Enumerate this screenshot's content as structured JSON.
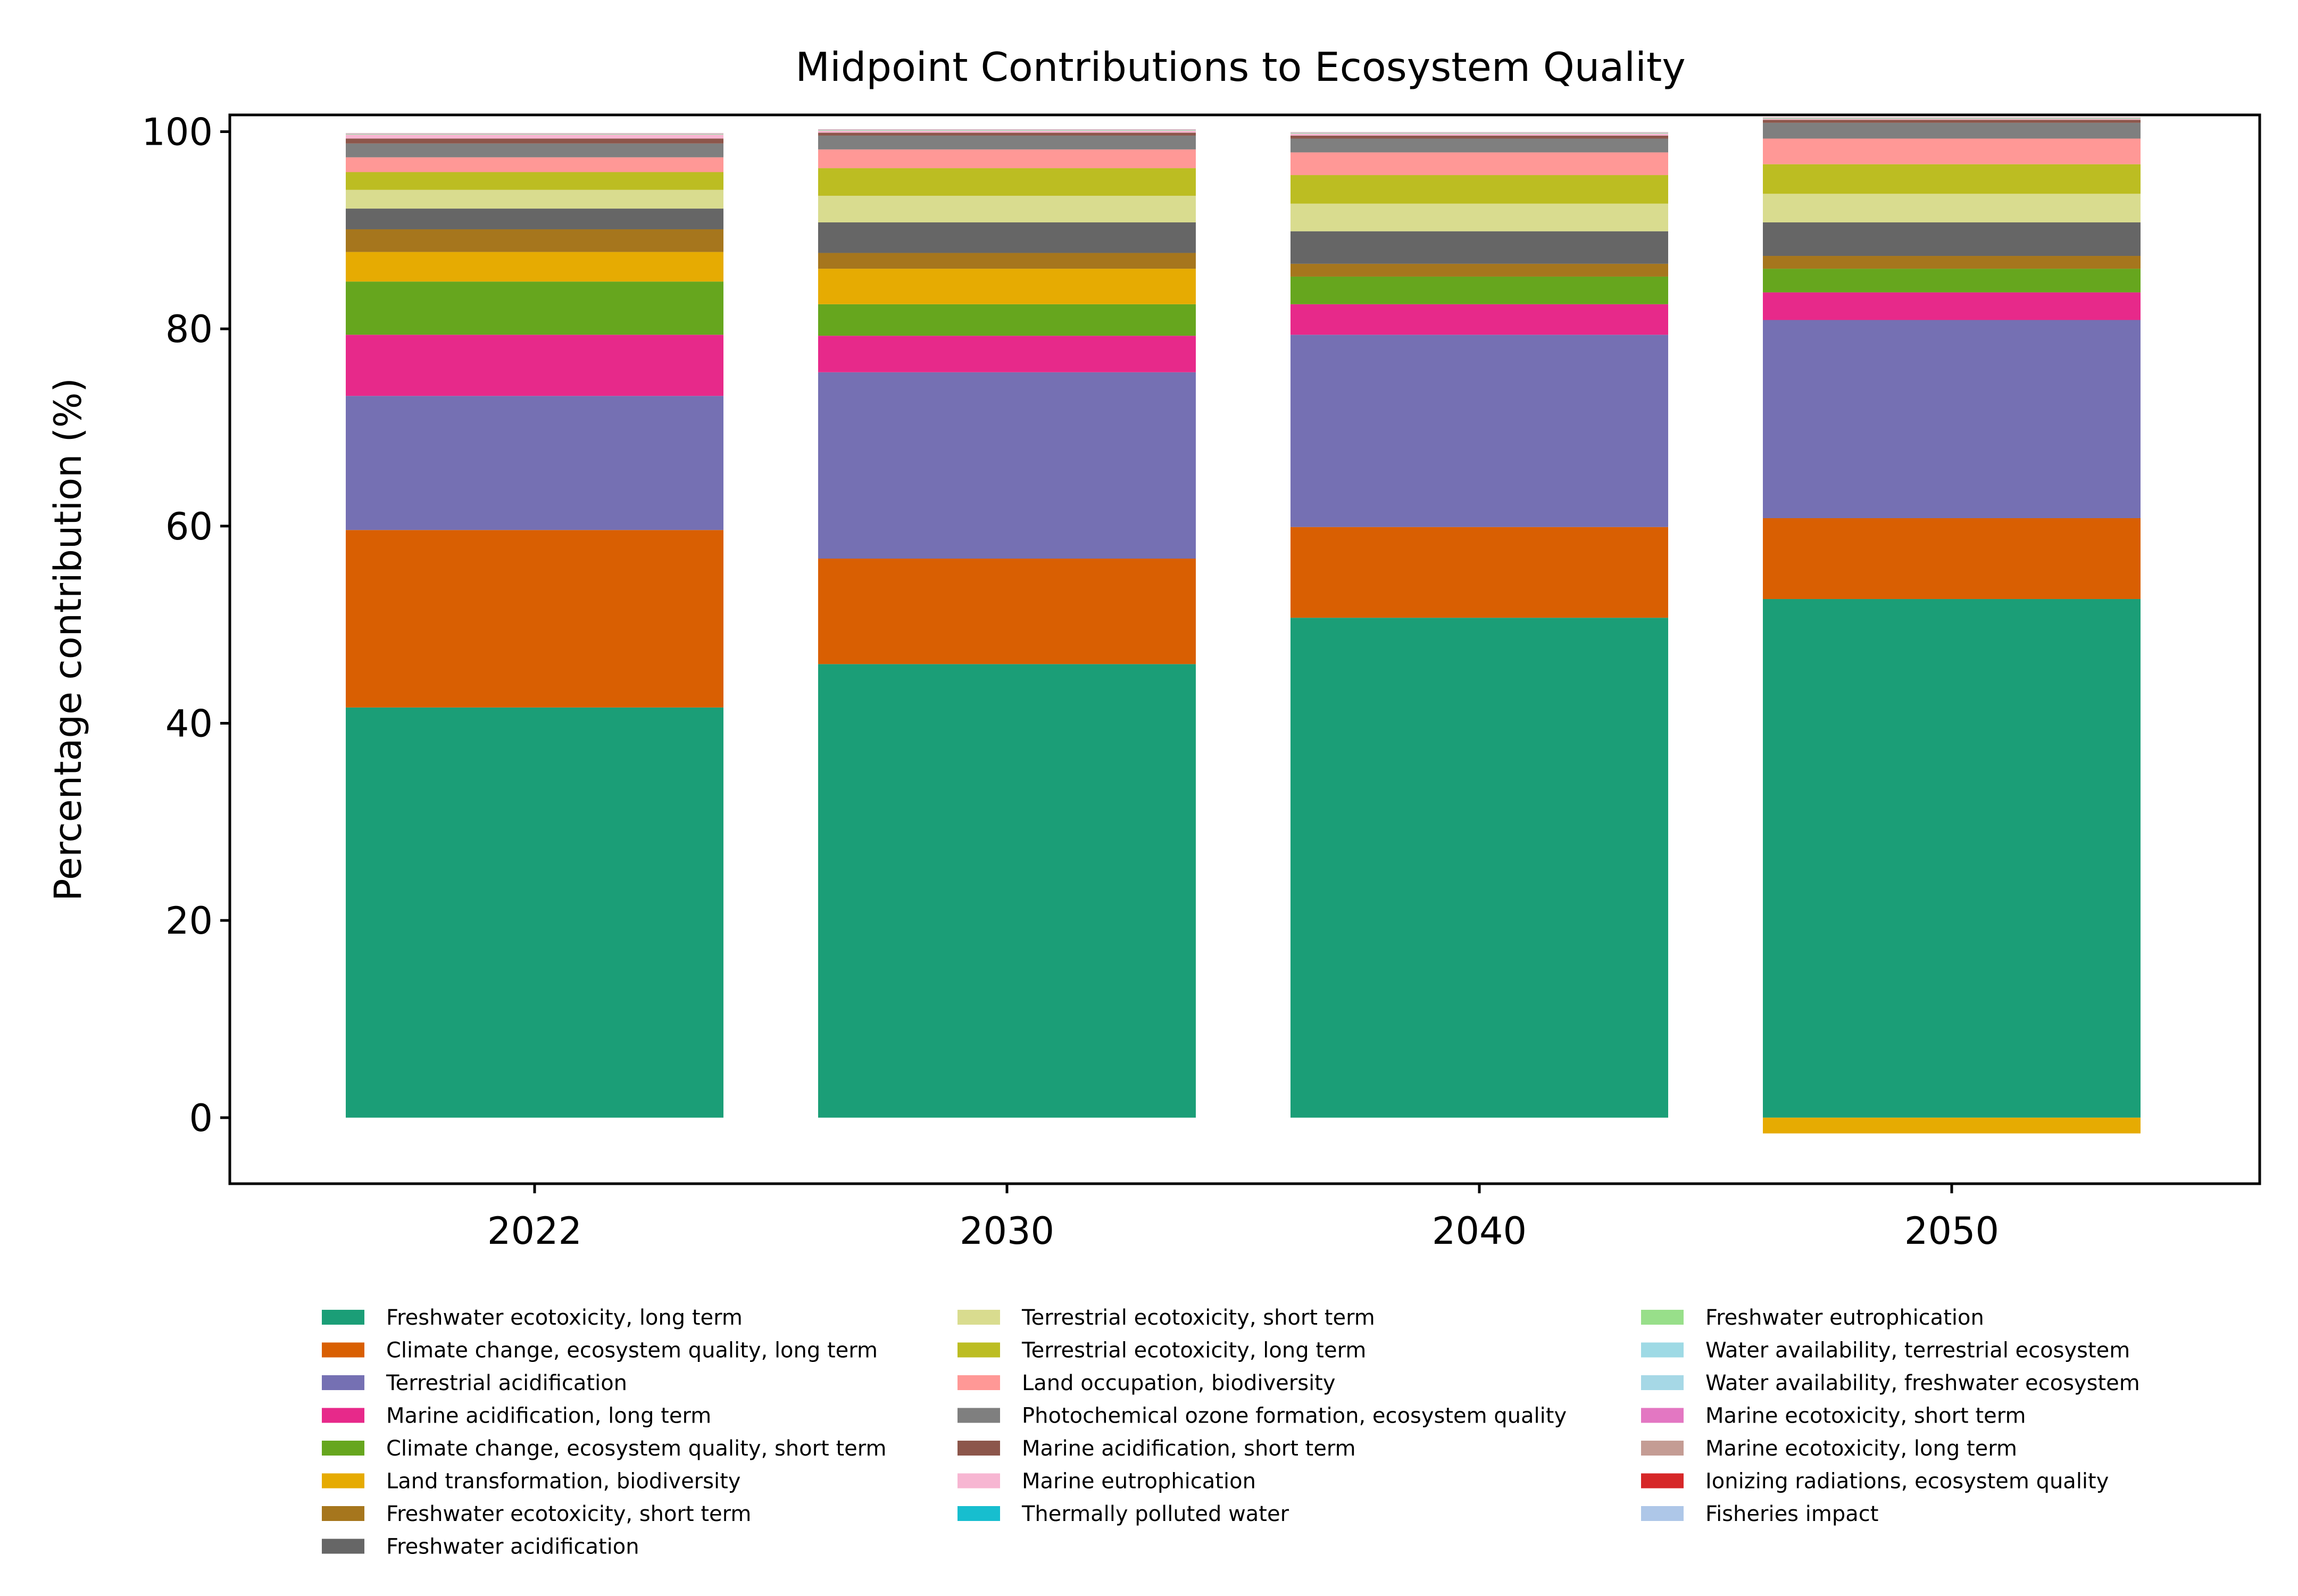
{
  "chart_data": {
    "type": "bar",
    "stacked": true,
    "title": "Midpoint Contributions to Ecosystem Quality",
    "xlabel": "",
    "ylabel": "Percentage contribution (%)",
    "categories": [
      "2022",
      "2030",
      "2040",
      "2050"
    ],
    "ylim": [
      -6.7,
      101.7
    ],
    "yticks": [
      0,
      20,
      40,
      60,
      80,
      100
    ],
    "grid": false,
    "legend_position": "bottom",
    "series": [
      {
        "name": "Freshwater ecotoxicity, long term",
        "color": "#1b9e77",
        "values": [
          41.6,
          46.0,
          50.7,
          52.6
        ]
      },
      {
        "name": "Climate change, ecosystem quality, long term",
        "color": "#d95f02",
        "values": [
          18.0,
          10.7,
          9.2,
          8.2
        ]
      },
      {
        "name": "Terrestrial acidification",
        "color": "#7570b3",
        "values": [
          13.6,
          18.9,
          19.5,
          20.1
        ]
      },
      {
        "name": "Marine acidification, long term",
        "color": "#e7298a",
        "values": [
          6.2,
          3.7,
          3.1,
          2.8
        ]
      },
      {
        "name": "Climate change, ecosystem quality, short term",
        "color": "#66a61e",
        "values": [
          5.4,
          3.2,
          2.8,
          2.4
        ]
      },
      {
        "name": "Land transformation, biodiversity",
        "color": "#e6ab02",
        "values": [
          3.0,
          3.6,
          0.0,
          -1.6
        ]
      },
      {
        "name": "Freshwater ecotoxicity, short term",
        "color": "#a6761d",
        "values": [
          2.3,
          1.6,
          1.3,
          1.3
        ]
      },
      {
        "name": "Freshwater acidification",
        "color": "#666666",
        "values": [
          2.1,
          3.1,
          3.3,
          3.4
        ]
      },
      {
        "name": "Terrestrial ecotoxicity, short term",
        "color": "#d9dc8f",
        "values": [
          1.9,
          2.7,
          2.8,
          2.9
        ]
      },
      {
        "name": "Terrestrial ecotoxicity, long term",
        "color": "#bcbd22",
        "values": [
          1.8,
          2.8,
          2.9,
          3.0
        ]
      },
      {
        "name": "Land occupation, biodiversity",
        "color": "#ff9896",
        "values": [
          1.5,
          1.9,
          2.3,
          2.6
        ]
      },
      {
        "name": "Photochemical ozone formation, ecosystem quality",
        "color": "#7f7f7f",
        "values": [
          1.4,
          1.4,
          1.4,
          1.6
        ]
      },
      {
        "name": "Marine acidification, short term",
        "color": "#8c564b",
        "values": [
          0.5,
          0.3,
          0.3,
          0.3
        ]
      },
      {
        "name": "Marine eutrophication",
        "color": "#f7b6d2",
        "values": [
          0.4,
          0.2,
          0.2,
          0.1
        ]
      },
      {
        "name": "Thermally polluted water",
        "color": "#17becf",
        "values": [
          0.0,
          0.0,
          0.0,
          0.0
        ]
      },
      {
        "name": "Freshwater eutrophication",
        "color": "#98df8a",
        "values": [
          0.05,
          0.05,
          0.05,
          0.05
        ]
      },
      {
        "name": "Water availability, terrestrial ecosystem",
        "color": "#9edae5",
        "values": [
          0.02,
          0.02,
          0.02,
          0.02
        ]
      },
      {
        "name": "Water availability, freshwater ecosystem",
        "color": "#a6d8e6",
        "values": [
          0.02,
          0.02,
          0.02,
          0.02
        ]
      },
      {
        "name": "Marine ecotoxicity, short term",
        "color": "#e377c2",
        "values": [
          0.02,
          0.02,
          0.02,
          0.02
        ]
      },
      {
        "name": "Marine ecotoxicity, long term",
        "color": "#c49c94",
        "values": [
          0.02,
          0.02,
          0.02,
          0.02
        ]
      },
      {
        "name": "Ionizing radiations, ecosystem quality",
        "color": "#d62728",
        "values": [
          0.01,
          0.01,
          0.01,
          0.01
        ]
      },
      {
        "name": "Fisheries impact",
        "color": "#aec7e8",
        "values": [
          0.0,
          0.0,
          0.0,
          0.0
        ]
      }
    ]
  }
}
